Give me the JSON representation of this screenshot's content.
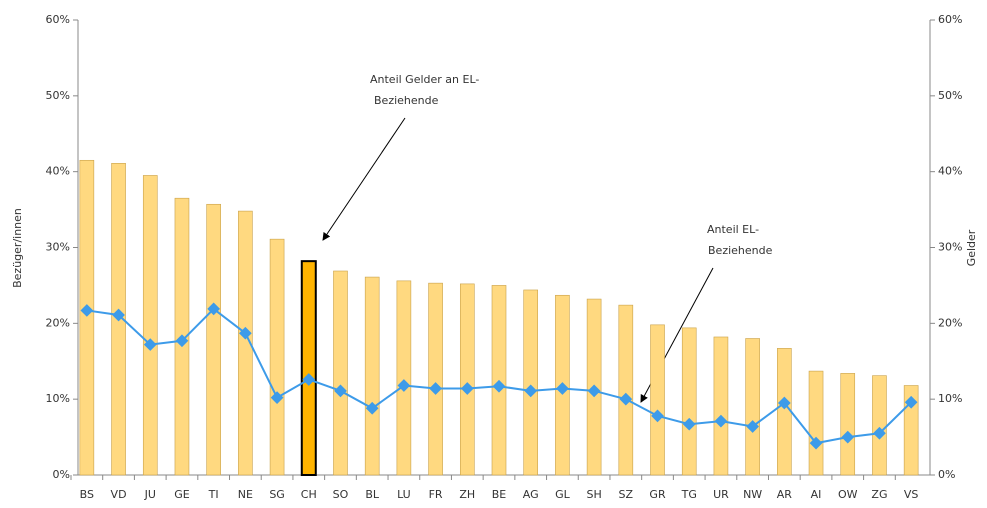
{
  "chart_data": {
    "type": "bar_line",
    "ylabel": "Bezüger/innen",
    "y2label": "Gelder",
    "categories": [
      "BS",
      "VD",
      "JU",
      "GE",
      "TI",
      "NE",
      "SG",
      "CH",
      "SO",
      "BL",
      "LU",
      "FR",
      "ZH",
      "BE",
      "AG",
      "GL",
      "SH",
      "SZ",
      "GR",
      "TG",
      "UR",
      "NW",
      "AR",
      "AI",
      "OW",
      "ZG",
      "VS"
    ],
    "series": [
      {
        "name": "Anteil Gelder an EL-Beziehende",
        "type": "bar",
        "axis": "y2",
        "color": "#ffd980",
        "colors": [
          "#ffd980",
          "#ffd980",
          "#ffd980",
          "#ffd980",
          "#ffd980",
          "#ffd980",
          "#ffd980",
          "#ffb400",
          "#ffd980",
          "#ffd980",
          "#ffd980",
          "#ffd980",
          "#ffd980",
          "#ffd980",
          "#ffd980",
          "#ffd980",
          "#ffd980",
          "#ffd980",
          "#ffd980",
          "#ffd980",
          "#ffd980",
          "#ffd980",
          "#ffd980",
          "#ffd980",
          "#ffd980",
          "#ffd980",
          "#ffd980"
        ],
        "values": [
          41.5,
          41.1,
          39.5,
          36.5,
          35.7,
          34.8,
          31.1,
          28.2,
          26.9,
          26.1,
          25.6,
          25.3,
          25.2,
          25.0,
          24.4,
          23.7,
          23.2,
          22.4,
          19.8,
          19.4,
          18.2,
          18.0,
          16.7,
          13.7,
          13.4,
          13.1,
          11.8
        ]
      },
      {
        "name": "Anteil EL-Beziehende",
        "type": "line",
        "axis": "y",
        "color": "#3d9be9",
        "values": [
          21.7,
          21.1,
          17.2,
          17.7,
          21.9,
          18.7,
          10.2,
          12.6,
          11.1,
          8.8,
          11.8,
          11.4,
          11.4,
          11.7,
          11.1,
          11.4,
          11.1,
          10.0,
          7.8,
          6.7,
          7.1,
          6.4,
          9.5,
          4.2,
          5.0,
          5.5,
          9.6
        ]
      }
    ],
    "annotations": [
      {
        "lines": [
          "Anteil Gelder an EL-",
          "Beziehende"
        ]
      },
      {
        "lines": [
          "Anteil EL-",
          "Beziehende"
        ]
      }
    ],
    "ylim": [
      0,
      60
    ],
    "yticks": [
      {
        "value": 0,
        "label": "0%"
      },
      {
        "value": 10,
        "label": "10%"
      },
      {
        "value": 20,
        "label": "20%"
      },
      {
        "value": 30,
        "label": "30%"
      },
      {
        "value": 40,
        "label": "40%"
      },
      {
        "value": 50,
        "label": "50%"
      },
      {
        "value": 60,
        "label": "60%"
      }
    ],
    "y2lim": [
      0,
      60
    ],
    "y2ticks": [
      {
        "value": 0,
        "label": "0%"
      },
      {
        "value": 10,
        "label": "10%"
      },
      {
        "value": 20,
        "label": "20%"
      },
      {
        "value": 30,
        "label": "30%"
      },
      {
        "value": 40,
        "label": "40%"
      },
      {
        "value": 50,
        "label": "50%"
      },
      {
        "value": 60,
        "label": "60%"
      }
    ]
  }
}
